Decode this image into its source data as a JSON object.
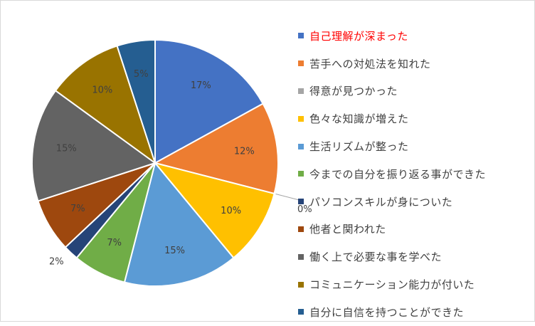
{
  "chart_data": {
    "type": "pie",
    "highlight_index": 0,
    "slices": [
      {
        "label": "自己理解が深まった",
        "value": 17,
        "display": "17%",
        "color": "#4472c4"
      },
      {
        "label": "苦手への対処法を知れた",
        "value": 12,
        "display": "12%",
        "color": "#ed7d31"
      },
      {
        "label": "得意が見つかった",
        "value": 0,
        "display": "0%",
        "color": "#a5a5a5"
      },
      {
        "label": "色々な知識が増えた",
        "value": 10,
        "display": "10%",
        "color": "#ffc000"
      },
      {
        "label": "生活リズムが整った",
        "value": 15,
        "display": "15%",
        "color": "#5b9bd5"
      },
      {
        "label": "今までの自分を振り返る事ができた",
        "value": 7,
        "display": "7%",
        "color": "#70ad47"
      },
      {
        "label": "パソコンスキルが身についた",
        "value": 2,
        "display": "2%",
        "color": "#264478"
      },
      {
        "label": "他者と関われた",
        "value": 7,
        "display": "7%",
        "color": "#9e480e"
      },
      {
        "label": "働く上で必要な事を学べた",
        "value": 15,
        "display": "15%",
        "color": "#636363"
      },
      {
        "label": "コミュニケーション能力が付いた",
        "value": 10,
        "display": "10%",
        "color": "#997300"
      },
      {
        "label": "自分に自信を持つことができた",
        "value": 5,
        "display": "5%",
        "color": "#255e91"
      }
    ]
  }
}
